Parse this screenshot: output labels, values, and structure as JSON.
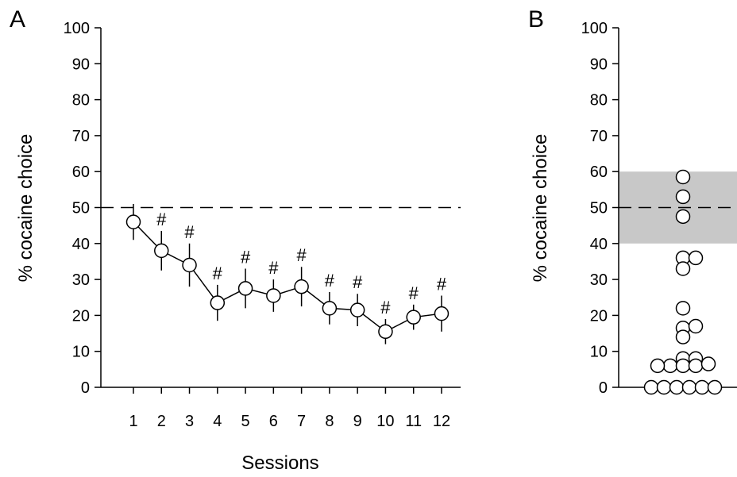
{
  "chart_data": [
    {
      "panel_label": "A",
      "type": "line",
      "xlabel": "Sessions",
      "ylabel": "% cocaine choice",
      "ylim": [
        0,
        100
      ],
      "yticks": [
        0,
        10,
        20,
        30,
        40,
        50,
        60,
        70,
        80,
        90,
        100
      ],
      "categories": [
        "1",
        "2",
        "3",
        "4",
        "5",
        "6",
        "7",
        "8",
        "9",
        "10",
        "11",
        "12"
      ],
      "values": [
        46,
        38,
        34,
        23.5,
        27.5,
        25.5,
        28,
        22,
        21.5,
        15.5,
        19.5,
        20.5
      ],
      "errors": [
        5,
        5.5,
        6,
        5,
        5.5,
        4.5,
        5.5,
        4.5,
        4.5,
        3.5,
        3.5,
        5
      ],
      "significance": [
        "",
        "#",
        "#",
        "#",
        "#",
        "#",
        "#",
        "#",
        "#",
        "#",
        "#",
        "#"
      ],
      "reference_line": 50,
      "grid": false
    },
    {
      "panel_label": "B",
      "type": "scatter",
      "ylabel": "% cocaine choice",
      "ylim": [
        0,
        100
      ],
      "yticks": [
        0,
        10,
        20,
        30,
        40,
        50,
        60,
        70,
        80,
        90,
        100
      ],
      "shaded_band": [
        40,
        60
      ],
      "reference_line": 50,
      "points": [
        {
          "offset": 0,
          "value": 58.5
        },
        {
          "offset": 0,
          "value": 53
        },
        {
          "offset": 0,
          "value": 47.5
        },
        {
          "offset": 0,
          "value": 36
        },
        {
          "offset": 1,
          "value": 36
        },
        {
          "offset": 0,
          "value": 33
        },
        {
          "offset": 0,
          "value": 22
        },
        {
          "offset": 0,
          "value": 16.5
        },
        {
          "offset": 1,
          "value": 17
        },
        {
          "offset": 0,
          "value": 14
        },
        {
          "offset": 0,
          "value": 8
        },
        {
          "offset": 1,
          "value": 8
        },
        {
          "offset": -1,
          "value": 6
        },
        {
          "offset": 0,
          "value": 6
        },
        {
          "offset": 1,
          "value": 6
        },
        {
          "offset": 2,
          "value": 6.5
        },
        {
          "offset": -2,
          "value": 6
        },
        {
          "offset": -2.5,
          "value": 0
        },
        {
          "offset": -1.5,
          "value": 0
        },
        {
          "offset": -0.5,
          "value": 0
        },
        {
          "offset": 0.5,
          "value": 0
        },
        {
          "offset": 1.5,
          "value": 0
        },
        {
          "offset": 2.5,
          "value": 0
        }
      ],
      "grid": false
    }
  ]
}
